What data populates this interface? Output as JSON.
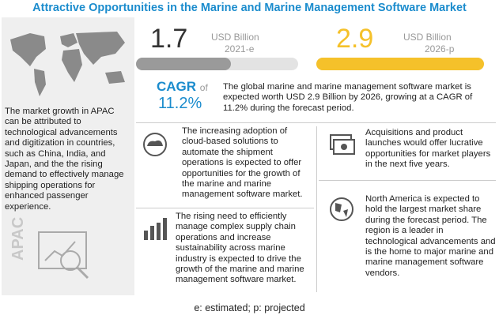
{
  "title": "Attractive Opportunities in the Marine and Marine Management Software Market",
  "left_panel": {
    "text": "The market growth in APAC can be attributed to technological advancements and digitization in countries, such as China, India, and Japan, and the the rising demand to effectively manage shipping operations for enhanced passenger experience.",
    "region": "APAC"
  },
  "highlights": [
    {
      "value": 1.7,
      "unit": "USD Billion",
      "year": "2021-e"
    },
    {
      "value": 2.9,
      "unit": "USD Billion",
      "year": "2026-p"
    }
  ],
  "cagr": {
    "label": "CAGR",
    "of": "of",
    "value": "11.2%"
  },
  "summary": "The global marine and marine management software market is expected worth USD 2.9 Billion by 2026, growing at a CAGR of 11.2% during the forecast period.",
  "points": [
    "The increasing adoption of cloud-based solutions to automate the shipment operations is expected to offer opportunities for the growth of the marine and marine management software market.",
    "Acquisitions and product launches would offer lucrative opportunities for market players in the next five years.",
    "The rising need to efficiently manage complex supply chain operations and increase sustainability across marine industry is expected to drive the growth of the marine and marine management software market.",
    "North America is expected to hold the largest market share during the forecast period. The region is a leader in technological advancements and is the home to major marine and marine management software vendors."
  ],
  "footnote": "e: estimated; p: projected"
}
